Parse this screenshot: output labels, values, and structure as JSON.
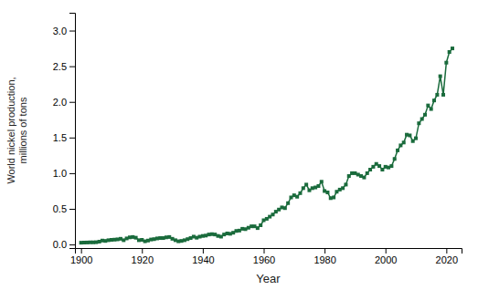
{
  "chart_data": {
    "type": "line",
    "x": [
      1900,
      1901,
      1902,
      1903,
      1904,
      1905,
      1906,
      1907,
      1908,
      1909,
      1910,
      1911,
      1912,
      1913,
      1914,
      1915,
      1916,
      1917,
      1918,
      1919,
      1920,
      1921,
      1922,
      1923,
      1924,
      1925,
      1926,
      1927,
      1928,
      1929,
      1930,
      1931,
      1932,
      1933,
      1934,
      1935,
      1936,
      1937,
      1938,
      1939,
      1940,
      1941,
      1942,
      1943,
      1944,
      1945,
      1946,
      1947,
      1948,
      1949,
      1950,
      1951,
      1952,
      1953,
      1954,
      1955,
      1956,
      1957,
      1958,
      1959,
      1960,
      1961,
      1962,
      1963,
      1964,
      1965,
      1966,
      1967,
      1968,
      1969,
      1970,
      1971,
      1972,
      1973,
      1974,
      1975,
      1976,
      1977,
      1978,
      1979,
      1980,
      1981,
      1982,
      1983,
      1984,
      1985,
      1986,
      1987,
      1988,
      1989,
      1990,
      1991,
      1992,
      1993,
      1994,
      1995,
      1996,
      1997,
      1998,
      1999,
      2000,
      2001,
      2002,
      2003,
      2004,
      2005,
      2006,
      2007,
      2008,
      2009,
      2010,
      2011,
      2012,
      2013,
      2014,
      2015,
      2016,
      2017,
      2018,
      2019,
      2020,
      2021,
      2022
    ],
    "values": [
      0.025,
      0.027,
      0.028,
      0.03,
      0.03,
      0.032,
      0.04,
      0.055,
      0.05,
      0.06,
      0.065,
      0.068,
      0.072,
      0.08,
      0.06,
      0.085,
      0.1,
      0.105,
      0.095,
      0.06,
      0.065,
      0.045,
      0.055,
      0.07,
      0.075,
      0.085,
      0.09,
      0.09,
      0.1,
      0.105,
      0.08,
      0.06,
      0.045,
      0.05,
      0.06,
      0.075,
      0.09,
      0.11,
      0.095,
      0.11,
      0.12,
      0.125,
      0.14,
      0.145,
      0.14,
      0.12,
      0.11,
      0.14,
      0.155,
      0.15,
      0.165,
      0.19,
      0.195,
      0.22,
      0.215,
      0.235,
      0.255,
      0.255,
      0.23,
      0.27,
      0.34,
      0.36,
      0.39,
      0.42,
      0.46,
      0.49,
      0.52,
      0.51,
      0.58,
      0.66,
      0.69,
      0.67,
      0.72,
      0.79,
      0.84,
      0.76,
      0.79,
      0.8,
      0.82,
      0.88,
      0.75,
      0.73,
      0.65,
      0.66,
      0.74,
      0.77,
      0.79,
      0.84,
      0.96,
      1.0,
      1.0,
      0.98,
      0.96,
      0.94,
      1.0,
      1.05,
      1.09,
      1.13,
      1.1,
      1.05,
      1.09,
      1.08,
      1.1,
      1.2,
      1.32,
      1.39,
      1.43,
      1.54,
      1.53,
      1.45,
      1.49,
      1.7,
      1.76,
      1.82,
      1.95,
      1.9,
      2.02,
      2.1,
      2.36,
      2.1,
      2.55,
      2.7,
      2.75
    ],
    "color": "#1a6b3c",
    "marker": "square",
    "line_style": "solid",
    "xlabel": "Year",
    "ylabel": "World nickel production,\nmillions of tons",
    "xlim": [
      1898,
      2025
    ],
    "ylim": [
      -0.05,
      3.25
    ],
    "xticks": [
      1900,
      1920,
      1940,
      1960,
      1980,
      2000,
      2020
    ],
    "yticks": [
      {
        "value": 0.0,
        "label": "0.0"
      },
      0.5,
      {
        "value": 1.0,
        "label": "1.0"
      },
      1.5,
      {
        "value": 2.0,
        "label": "2.0"
      },
      2.5,
      {
        "value": 3.0,
        "label": "3.0"
      }
    ],
    "grid": false
  }
}
